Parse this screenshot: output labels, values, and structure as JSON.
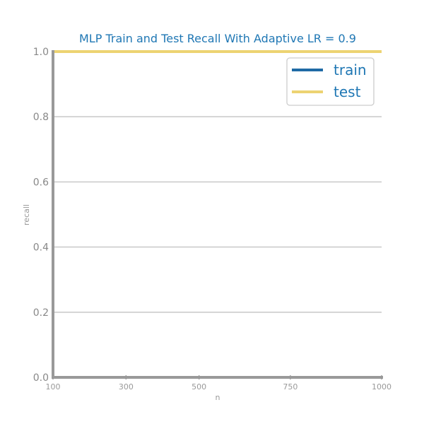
{
  "chart_data": {
    "type": "line",
    "title": "MLP Train and Test Recall With Adaptive LR = 0.9",
    "xlabel": "n",
    "ylabel": "recall",
    "x": [
      100,
      300,
      500,
      750,
      1000
    ],
    "xticks": [
      "100",
      "300",
      "500",
      "750",
      "1000"
    ],
    "yticks": [
      "0.0",
      "0.2",
      "0.4",
      "0.6",
      "0.8",
      "1.0"
    ],
    "xlim": [
      100,
      1000
    ],
    "ylim": [
      0,
      1
    ],
    "grid": "horizontal",
    "legend_position": "top-right",
    "series": [
      {
        "name": "train",
        "color": "#1f6aa5",
        "values": [
          1.0,
          1.0,
          1.0,
          1.0,
          1.0
        ]
      },
      {
        "name": "test",
        "color": "#edd372",
        "values": [
          1.0,
          1.0,
          1.0,
          1.0,
          1.0
        ]
      }
    ]
  }
}
